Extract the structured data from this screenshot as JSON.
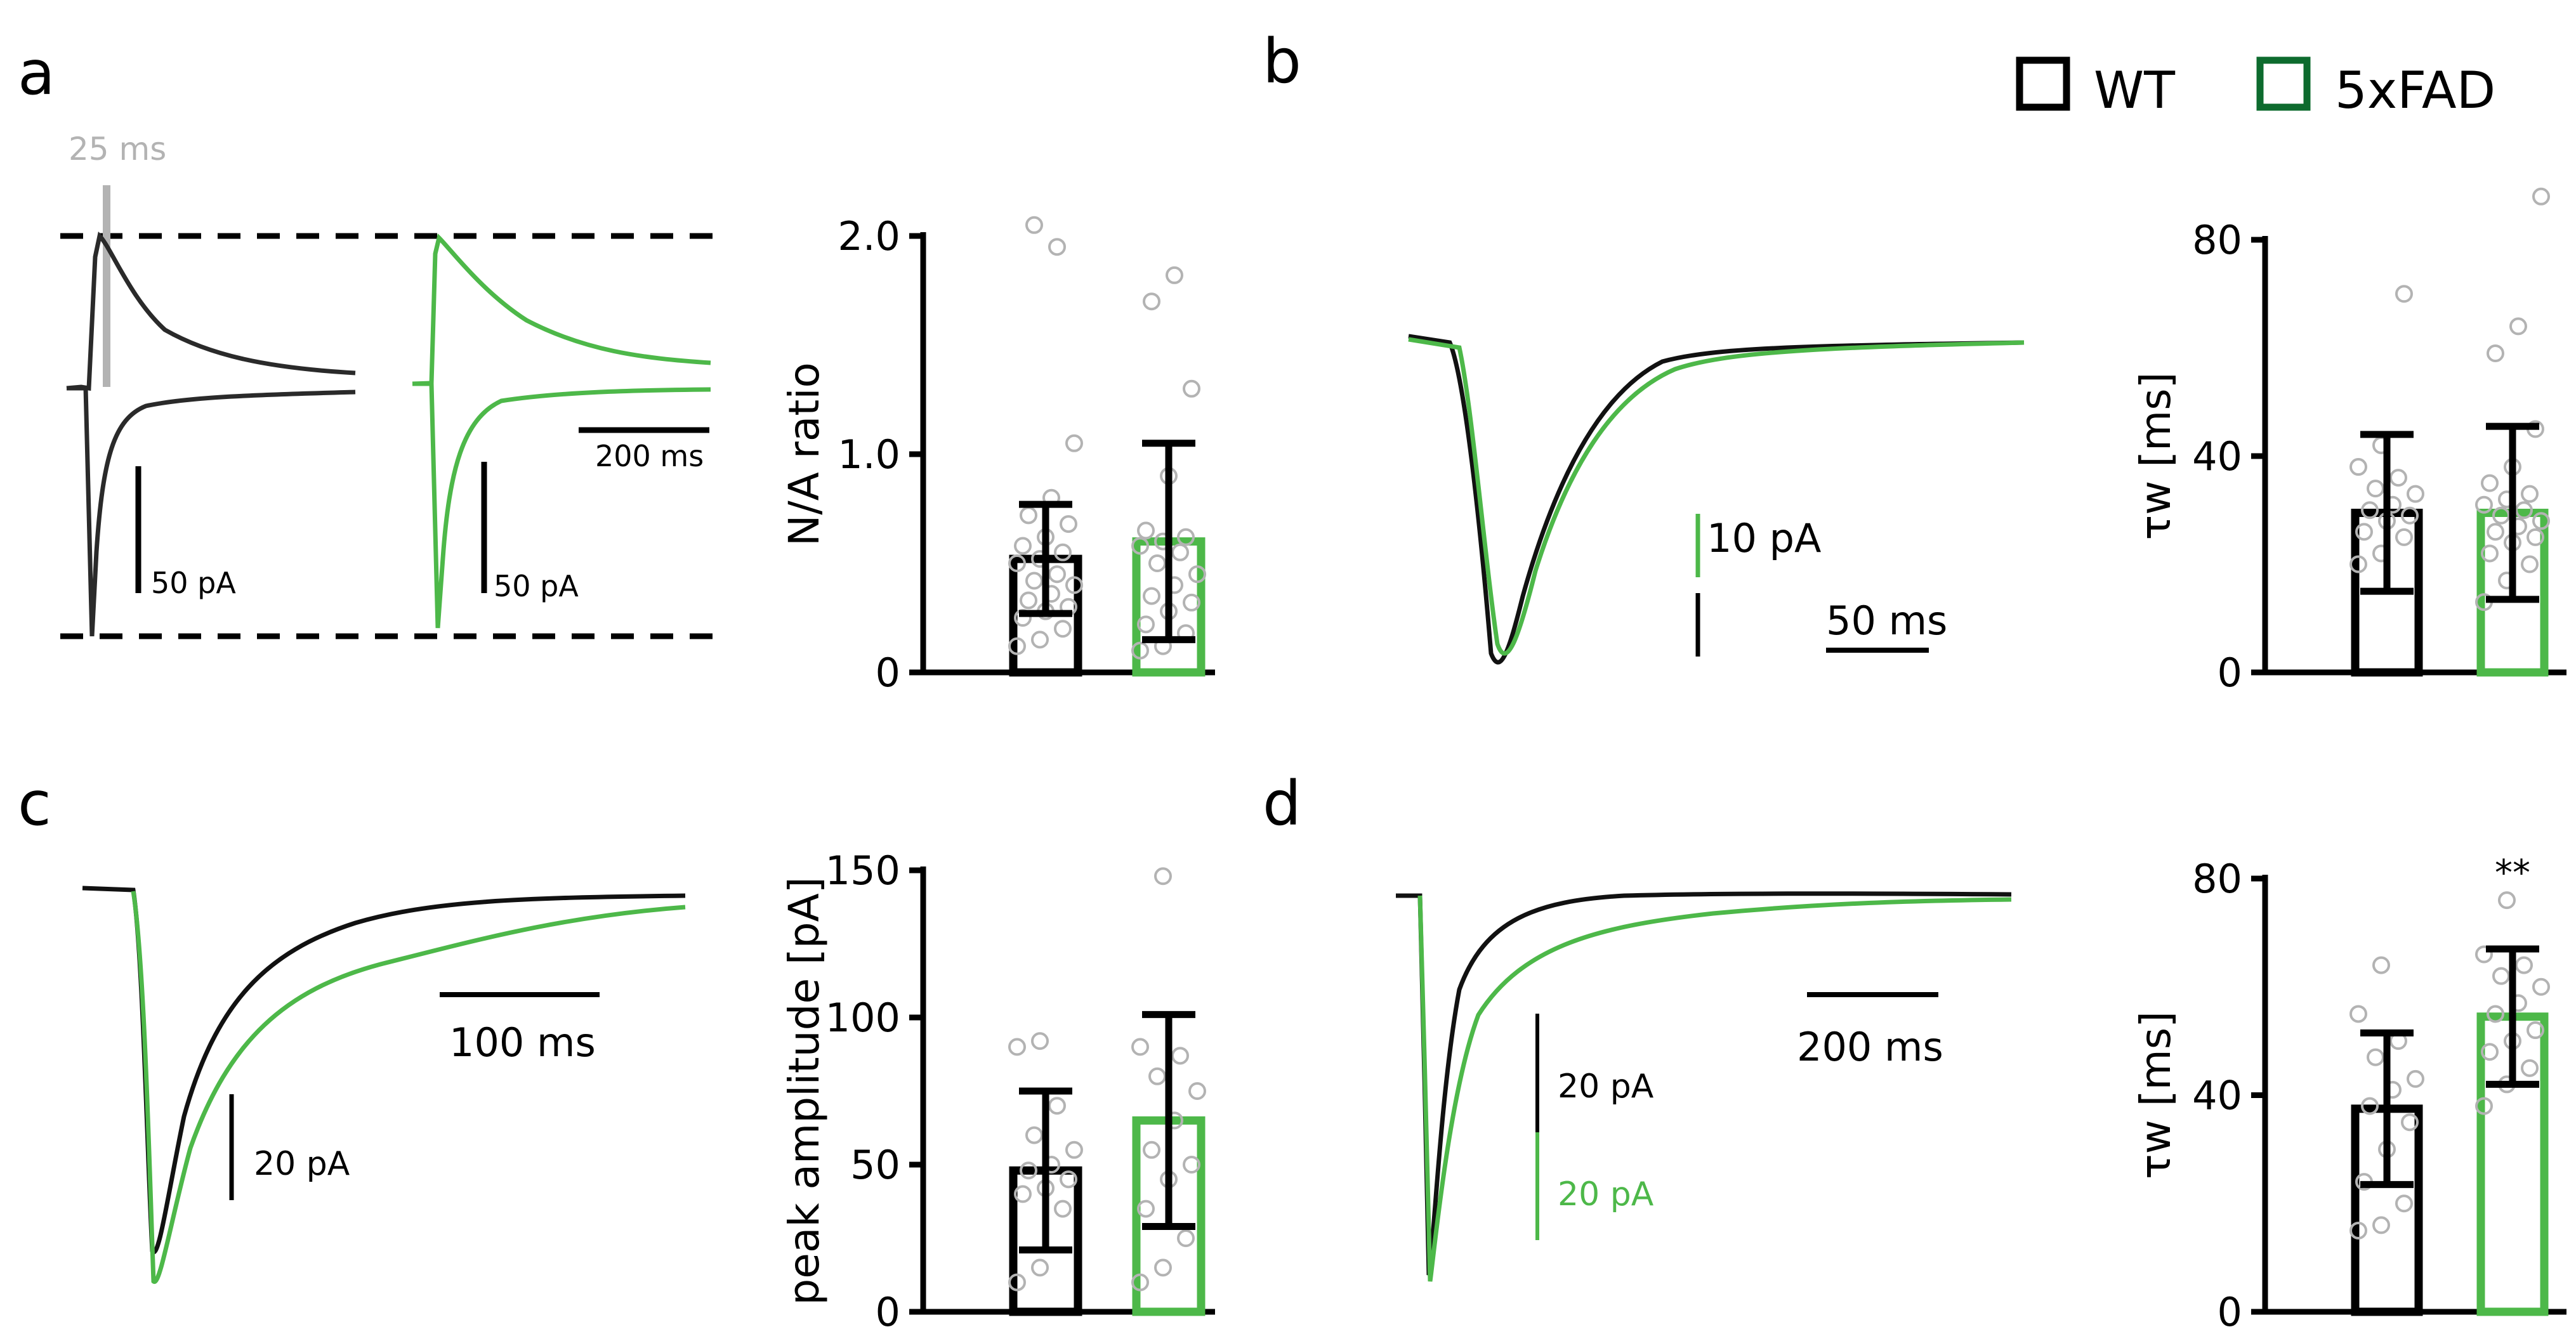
{
  "figure": {
    "panel_labels": [
      "a",
      "b",
      "c",
      "d"
    ],
    "legend": [
      {
        "label": "WT",
        "color": "#000000"
      },
      {
        "label": "5xFAD",
        "color": "#0d6b2e"
      }
    ],
    "colors": {
      "wt": "#000000",
      "fad": "#4db849",
      "fad_legend": "#0d6b2e",
      "points": "#b3b3b3",
      "marker": "#b3b3b3"
    },
    "a_traces": {
      "marker_label": "25 ms",
      "wt_scale": "50 pA",
      "fad_scale": "50 pA",
      "time_scale": "200 ms"
    },
    "b_trace": {
      "current_scale": "10 pA",
      "time_scale": "50 ms"
    },
    "c_trace": {
      "time_scale": "100 ms",
      "current_scale": "20 pA"
    },
    "d_trace": {
      "time_scale": "200 ms",
      "wt_scale": "20 pA",
      "fad_scale": "20 pA"
    }
  },
  "chart_data": [
    {
      "id": "a-bar",
      "type": "bar",
      "title": "",
      "ylabel": "N/A ratio",
      "xlabel": "",
      "ylim": [
        0,
        2.0
      ],
      "ytick_values": [
        0,
        1.0,
        2.0
      ],
      "ytick_labels": [
        "0",
        "1.0",
        "2.0"
      ],
      "categories": [
        "WT",
        "5xFAD"
      ],
      "values": [
        0.52,
        0.6
      ],
      "errors": [
        0.25,
        0.45
      ],
      "points": [
        [
          0.12,
          0.15,
          0.2,
          0.25,
          0.28,
          0.3,
          0.33,
          0.36,
          0.4,
          0.42,
          0.45,
          0.5,
          0.52,
          0.55,
          0.58,
          0.62,
          0.68,
          0.72,
          0.8,
          1.05,
          2.05,
          1.95
        ],
        [
          0.1,
          0.12,
          0.18,
          0.22,
          0.28,
          0.32,
          0.35,
          0.4,
          0.45,
          0.5,
          0.55,
          0.58,
          0.6,
          0.62,
          0.65,
          0.9,
          1.3,
          1.7,
          1.82
        ]
      ],
      "annotation": ""
    },
    {
      "id": "b-bar",
      "type": "bar",
      "title": "",
      "ylabel": "τw [ms]",
      "xlabel": "",
      "ylim": [
        0,
        80
      ],
      "ytick_values": [
        0,
        40,
        80
      ],
      "ytick_labels": [
        "0",
        "40",
        "80"
      ],
      "categories": [
        "WT",
        "5xFAD"
      ],
      "values": [
        29.5,
        29.5
      ],
      "errors": [
        14.5,
        16
      ],
      "points": [
        [
          20,
          22,
          25,
          26,
          28,
          29,
          30,
          31,
          33,
          34,
          36,
          38,
          42,
          70
        ],
        [
          13,
          17,
          20,
          22,
          24,
          25,
          26,
          27,
          28,
          29,
          30,
          31,
          32,
          33,
          35,
          38,
          45,
          59,
          64,
          88
        ]
      ],
      "annotation": ""
    },
    {
      "id": "c-bar",
      "type": "bar",
      "title": "",
      "ylabel": "peak amplitude [pA]",
      "xlabel": "",
      "ylim": [
        0,
        150
      ],
      "ytick_values": [
        0,
        50,
        100,
        150
      ],
      "ytick_labels": [
        "0",
        "50",
        "100",
        "150"
      ],
      "categories": [
        "WT",
        "5xFAD"
      ],
      "values": [
        48,
        65
      ],
      "errors": [
        27,
        36
      ],
      "points": [
        [
          10,
          15,
          35,
          40,
          42,
          45,
          48,
          50,
          55,
          60,
          70,
          90,
          92
        ],
        [
          10,
          15,
          25,
          35,
          45,
          50,
          55,
          65,
          75,
          80,
          87,
          90,
          148
        ]
      ],
      "annotation": ""
    },
    {
      "id": "d-bar",
      "type": "bar",
      "title": "",
      "ylabel": "τw [ms]",
      "xlabel": "",
      "ylim": [
        0,
        80
      ],
      "ytick_values": [
        0,
        40,
        80
      ],
      "ytick_labels": [
        "0",
        "40",
        "80"
      ],
      "categories": [
        "WT",
        "5xFAD"
      ],
      "values": [
        37.5,
        54.5
      ],
      "errors": [
        14,
        12.5
      ],
      "points": [
        [
          15,
          16,
          20,
          24,
          30,
          35,
          38,
          41,
          43,
          47,
          50,
          55,
          64
        ],
        [
          38,
          42,
          45,
          48,
          50,
          52,
          55,
          57,
          60,
          62,
          64,
          66,
          76
        ]
      ],
      "annotation": "**"
    }
  ]
}
